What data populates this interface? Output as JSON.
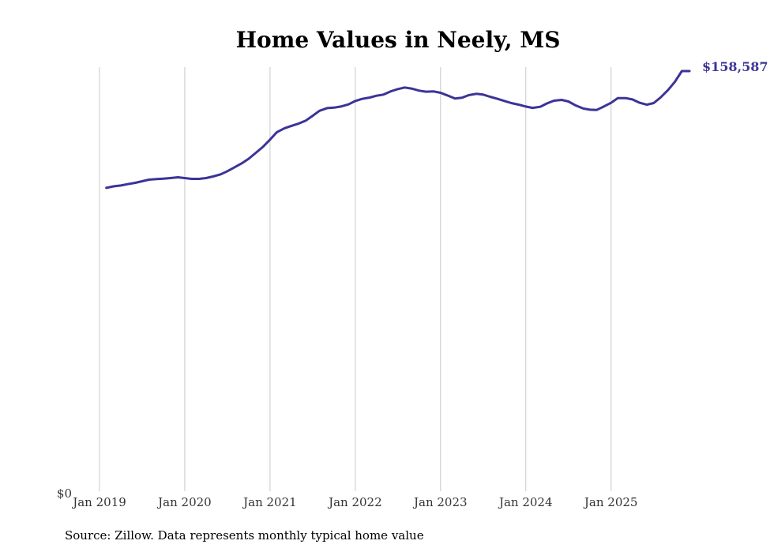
{
  "colors": {
    "line": "#3b3498",
    "grid": "#c8c8c8",
    "text": "#000000"
  },
  "source": "Source: Zillow. Data represents monthly typical home value",
  "chart_data": {
    "type": "line",
    "title": "Home Values in Neely, MS",
    "xlabel": "",
    "ylabel": "",
    "y_tick_label": "$0",
    "end_label": "$158,587",
    "x_tick_labels": [
      "Jan 2019",
      "Jan 2020",
      "Jan 2021",
      "Jan 2022",
      "Jan 2023",
      "Jan 2024",
      "Jan 2025"
    ],
    "x_tick_years": [
      2019,
      2020,
      2021,
      2022,
      2023,
      2024,
      2025
    ],
    "xlim": [
      2019.0,
      2025.92
    ],
    "ylim": [
      0,
      158587
    ],
    "grid": "vertical",
    "series": [
      {
        "name": "Typical home value",
        "x": [
          2019.08,
          2019.17,
          2019.25,
          2019.33,
          2019.42,
          2019.5,
          2019.58,
          2019.67,
          2019.75,
          2019.83,
          2019.92,
          2020.0,
          2020.08,
          2020.17,
          2020.25,
          2020.33,
          2020.42,
          2020.5,
          2020.58,
          2020.67,
          2020.75,
          2020.83,
          2020.92,
          2021.0,
          2021.08,
          2021.17,
          2021.25,
          2021.33,
          2021.42,
          2021.5,
          2021.58,
          2021.67,
          2021.75,
          2021.83,
          2021.92,
          2022.0,
          2022.08,
          2022.17,
          2022.25,
          2022.33,
          2022.42,
          2022.5,
          2022.58,
          2022.67,
          2022.75,
          2022.83,
          2022.92,
          2023.0,
          2023.08,
          2023.17,
          2023.25,
          2023.33,
          2023.42,
          2023.5,
          2023.58,
          2023.67,
          2023.75,
          2023.83,
          2023.92,
          2024.0,
          2024.08,
          2024.17,
          2024.25,
          2024.33,
          2024.42,
          2024.5,
          2024.58,
          2024.67,
          2024.75,
          2024.83,
          2024.92,
          2025.0,
          2025.08,
          2025.17,
          2025.25,
          2025.33,
          2025.42,
          2025.5,
          2025.58,
          2025.67,
          2025.75,
          2025.83,
          2025.92
        ],
        "values": [
          114500,
          115100,
          115400,
          115900,
          116400,
          117000,
          117600,
          117800,
          118000,
          118200,
          118500,
          118200,
          117900,
          117900,
          118200,
          118800,
          119600,
          120800,
          122200,
          123800,
          125500,
          127600,
          130100,
          132700,
          135500,
          137000,
          137900,
          138700,
          139900,
          141700,
          143600,
          144600,
          144800,
          145200,
          146000,
          147300,
          148100,
          148600,
          149300,
          149700,
          151000,
          151800,
          152400,
          151900,
          151200,
          150800,
          150900,
          150400,
          149400,
          148200,
          148500,
          149500,
          150000,
          149700,
          148900,
          148100,
          147300,
          146500,
          145900,
          145200,
          144700,
          145100,
          146400,
          147400,
          147700,
          147100,
          145700,
          144500,
          144000,
          143900,
          145300,
          146600,
          148400,
          148400,
          147900,
          146700,
          145900,
          146500,
          148600,
          151500,
          154600,
          158587,
          158587
        ]
      }
    ]
  }
}
